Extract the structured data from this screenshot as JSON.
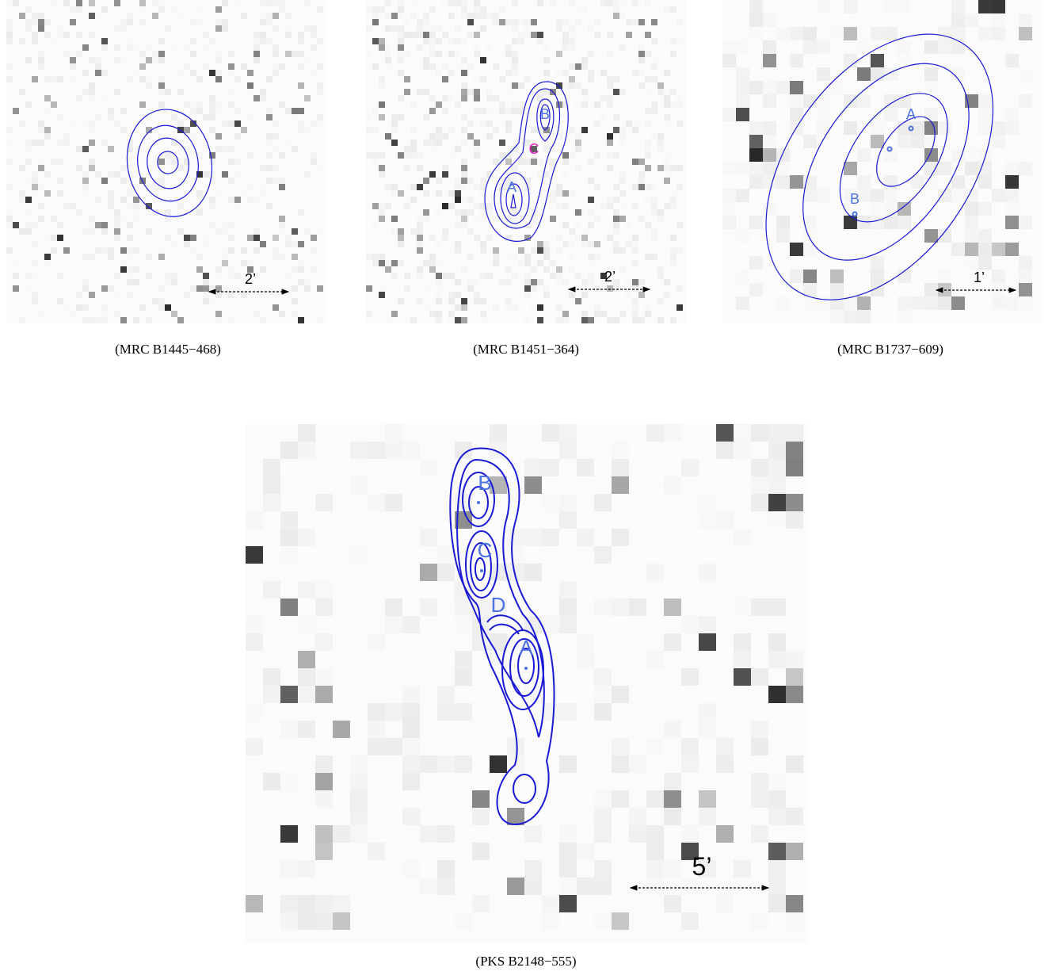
{
  "panels": [
    {
      "caption": "(MRC B1445−468)",
      "scale": "2’"
    },
    {
      "caption": "(MRC B1451−364)",
      "scale": "2’",
      "labels": [
        "B",
        "C",
        "A"
      ]
    },
    {
      "caption": "(MRC B1737−609)",
      "scale": "1’",
      "labels": [
        "A",
        "B"
      ]
    },
    {
      "caption": "(PKS B2148−555)",
      "scale": "5’",
      "labels": [
        "B",
        "C",
        "D",
        "A"
      ]
    }
  ]
}
